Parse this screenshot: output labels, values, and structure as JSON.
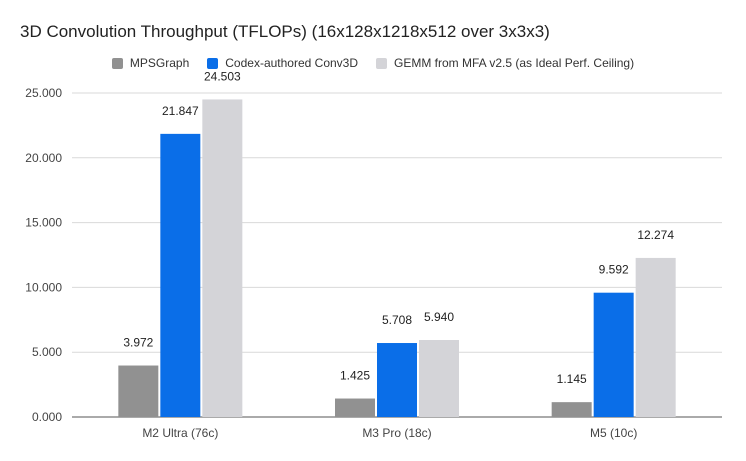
{
  "chart_data": {
    "type": "bar",
    "title": "3D Convolution Throughput (TFLOPs) (16x128x1218x512 over 3x3x3)",
    "xlabel": "",
    "ylabel": "",
    "categories": [
      "M2 Ultra (76c)",
      "M3 Pro (18c)",
      "M5 (10c)"
    ],
    "series": [
      {
        "name": "MPSGraph",
        "color": "#919191",
        "values": [
          3.972,
          1.425,
          1.145
        ],
        "labels": [
          "3.972",
          "1.425",
          "1.145"
        ]
      },
      {
        "name": "Codex-authored Conv3D",
        "color": "#0a6ee8",
        "values": [
          21.847,
          5.708,
          9.592
        ],
        "labels": [
          "21.847",
          "5.708",
          "9.592"
        ]
      },
      {
        "name": "GEMM from MFA v2.5 (as Ideal Perf. Ceiling)",
        "color": "#d4d4d8",
        "values": [
          24.503,
          5.94,
          12.274
        ],
        "labels": [
          "24.503",
          "5.940",
          "12.274"
        ]
      }
    ],
    "ylim": [
      0,
      25
    ],
    "yticks": [
      0,
      5,
      10,
      15,
      20,
      25
    ],
    "ytick_labels": [
      "0.000",
      "5.000",
      "10.000",
      "15.000",
      "20.000",
      "25.000"
    ],
    "grid": true,
    "legend_position": "top-center"
  }
}
